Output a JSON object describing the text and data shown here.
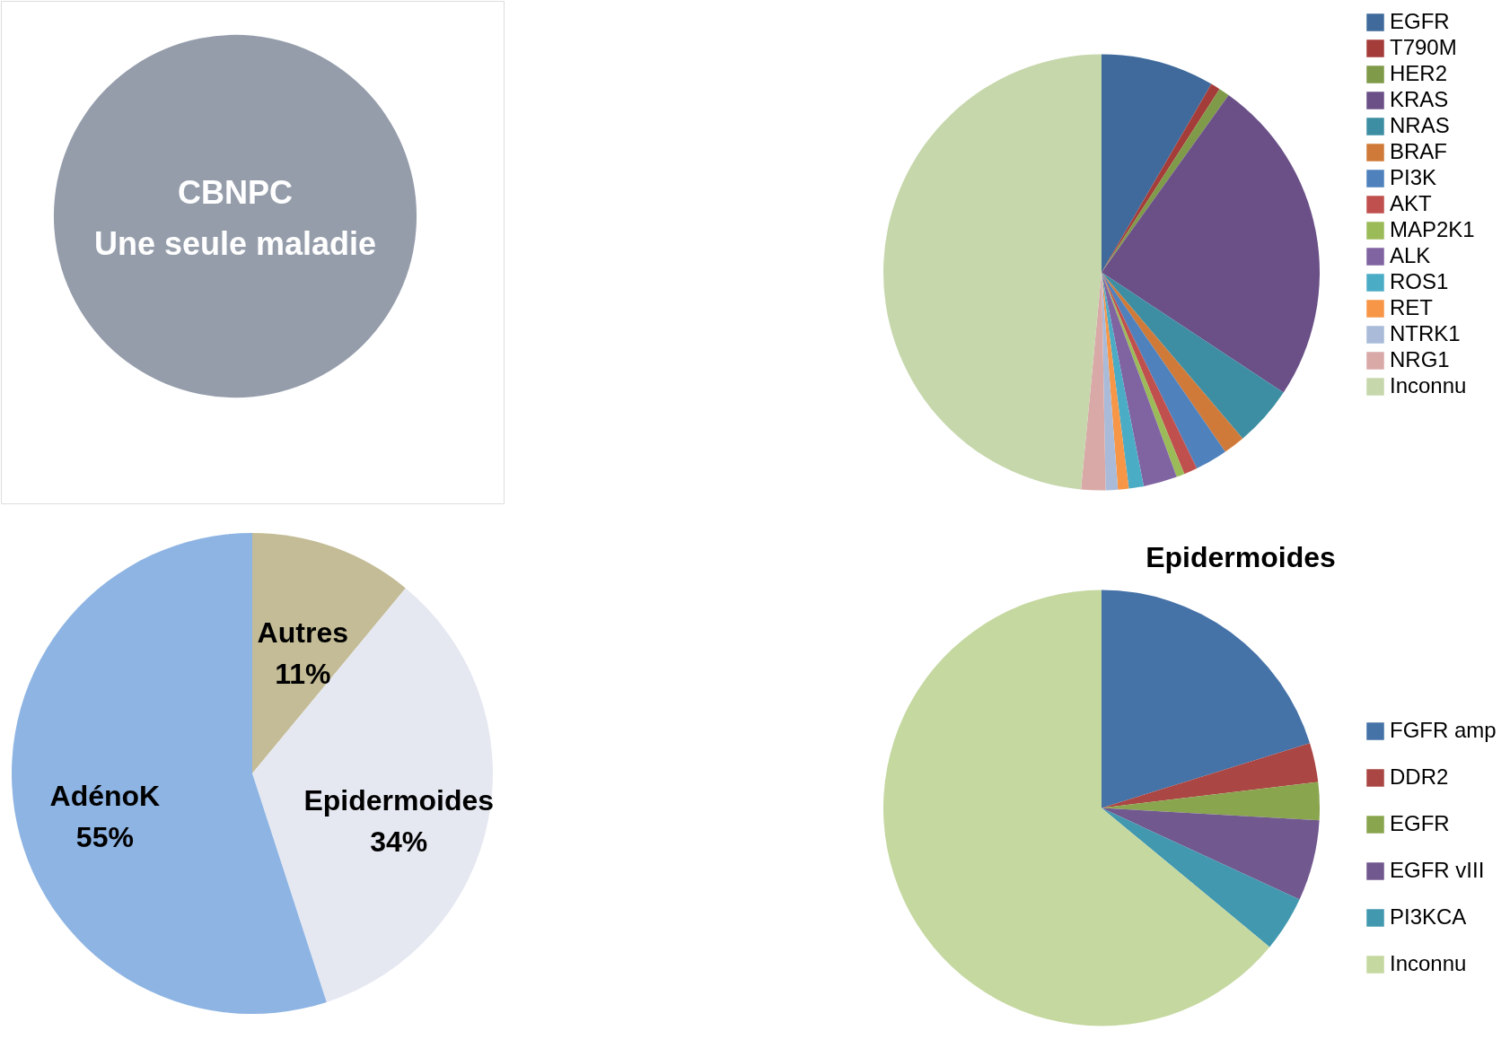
{
  "chart_data": [
    {
      "type": "other",
      "annotations": [
        "CBNPC",
        "Une seule maladie"
      ]
    },
    {
      "type": "pie",
      "legend": "right",
      "categories": [
        "EGFR",
        "T790M",
        "HER2",
        "KRAS",
        "NRAS",
        "BRAF",
        "PI3K",
        "AKT",
        "MAP2K1",
        "ALK",
        "ROS1",
        "RET",
        "NTRK1",
        "NRG1",
        "Inconnu"
      ],
      "values": [
        8.4,
        0.7,
        0.8,
        24.4,
        4.5,
        1.6,
        2.4,
        1.0,
        0.6,
        2.5,
        1.1,
        0.8,
        0.9,
        1.8,
        48.5
      ],
      "colors": [
        "#3f6a9b",
        "#a43d3a",
        "#7f9a48",
        "#6a5087",
        "#3d8ea3",
        "#cf7a39",
        "#4f81bd",
        "#c0504d",
        "#9bbb59",
        "#8064a2",
        "#4bacc6",
        "#f79646",
        "#a9bbd9",
        "#d9a9a8",
        "#c6d7ab"
      ]
    },
    {
      "type": "pie",
      "legend": false,
      "categories": [
        "Autres",
        "Epidermoides",
        "AdénoK"
      ],
      "values": [
        11,
        34,
        55
      ],
      "value_labels": [
        "11%",
        "34%",
        "55%"
      ],
      "colors": [
        "#c4bc96",
        "#e5e8f1",
        "#8eb4e3"
      ]
    },
    {
      "type": "pie",
      "legend": "right",
      "title": "Epidermoides",
      "categories": [
        "FGFR amp",
        "DDR2",
        "EGFR",
        "EGFR vIII",
        "PI3KCA",
        "Inconnu"
      ],
      "values": [
        20.2,
        2.9,
        2.8,
        6.0,
        4.1,
        64.0
      ],
      "colors": [
        "#4572a7",
        "#aa4643",
        "#89a54e",
        "#71588f",
        "#4198af",
        "#c5d8a0"
      ]
    }
  ]
}
